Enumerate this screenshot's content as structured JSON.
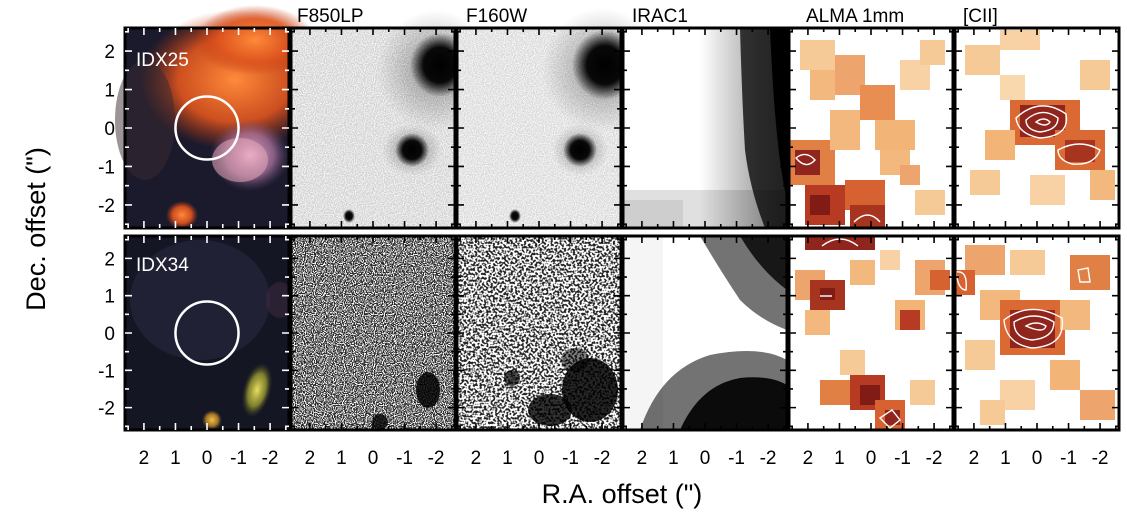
{
  "figure": {
    "columns": [
      "",
      "F850LP",
      "F160W",
      "IRAC1",
      "ALMA 1mm",
      "[CII]"
    ],
    "rows": [
      "IDX25",
      "IDX34"
    ],
    "xlabel": "R.A. offset (\")",
    "ylabel": "Dec. offset (\")",
    "x_ticks": [
      "2",
      "1",
      "0",
      "-1",
      "-2"
    ],
    "y_ticks": [
      "2",
      "1",
      "0",
      "-1",
      "-2"
    ],
    "x_range": [
      2.6,
      -2.6
    ],
    "y_range": [
      -2.6,
      2.6
    ],
    "circle_radius_arcsec": 1.0,
    "colors": {
      "rgb_background": "#1b1a2c",
      "rgb_bright": "#d9581c",
      "alma_peak": "#7a0f0a",
      "alma_low": "#f3c28a",
      "contour": "#ffffff"
    }
  }
}
